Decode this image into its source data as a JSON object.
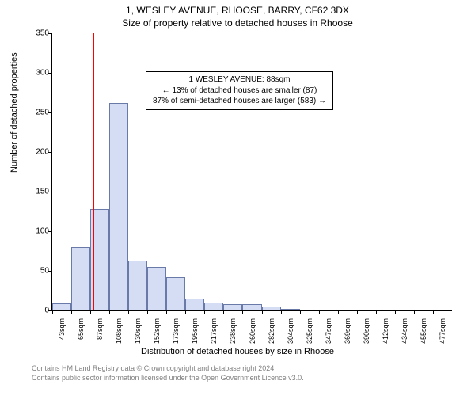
{
  "title": {
    "line1": "1, WESLEY AVENUE, RHOOSE, BARRY, CF62 3DX",
    "line2": "Size of property relative to detached houses in Rhoose"
  },
  "chart": {
    "type": "histogram",
    "ylim": [
      0,
      350
    ],
    "ytick_step": 50,
    "yticks": [
      0,
      50,
      100,
      150,
      200,
      250,
      300,
      350
    ],
    "xtick_labels": [
      "43sqm",
      "65sqm",
      "87sqm",
      "108sqm",
      "130sqm",
      "152sqm",
      "173sqm",
      "195sqm",
      "217sqm",
      "238sqm",
      "260sqm",
      "282sqm",
      "304sqm",
      "325sqm",
      "347sqm",
      "369sqm",
      "390sqm",
      "412sqm",
      "434sqm",
      "455sqm",
      "477sqm"
    ],
    "values": [
      9,
      80,
      128,
      262,
      63,
      55,
      42,
      15,
      10,
      8,
      8,
      5,
      2,
      0,
      0,
      0,
      0,
      0,
      0,
      0,
      0
    ],
    "bar_fill": "#d4ddf3",
    "bar_border": "#6a7aa8",
    "marker_color": "#ff0000",
    "marker_position_index": 2.1,
    "background_color": "#ffffff",
    "axis_color": "#000000",
    "ylabel": "Number of detached properties",
    "xlabel": "Distribution of detached houses by size in Rhoose",
    "label_fontsize": 11,
    "tick_fontsize": 10
  },
  "annotation": {
    "line1": "1 WESLEY AVENUE: 88sqm",
    "line2": "← 13% of detached houses are smaller (87)",
    "line3": "87% of semi-detached houses are larger (583) →"
  },
  "footer": {
    "line1": "Contains HM Land Registry data © Crown copyright and database right 2024.",
    "line2": "Contains public sector information licensed under the Open Government Licence v3.0."
  }
}
